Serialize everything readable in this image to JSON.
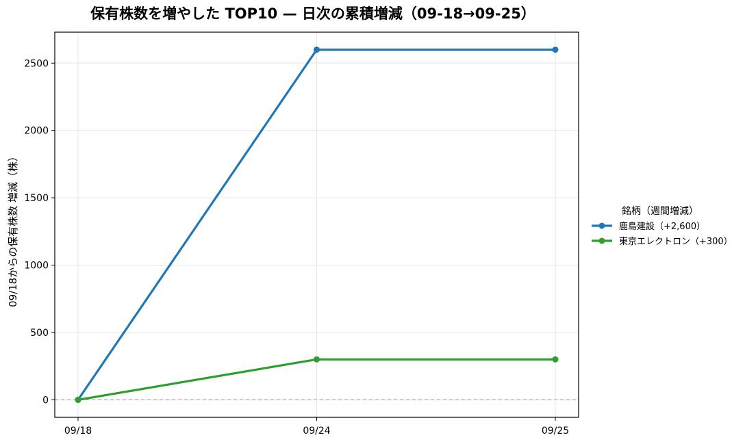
{
  "chart_data": {
    "type": "line",
    "title": "保有株数を増やした TOP10 — 日次の累積増減（09-18→09-25）",
    "ylabel": "09/18からの保有株数 増減（株）",
    "xlabel": "",
    "categories": [
      "09/18",
      "09/24",
      "09/25"
    ],
    "yticks": [
      0,
      500,
      1000,
      1500,
      2000,
      2500
    ],
    "ylim": [
      -130,
      2730
    ],
    "grid": true,
    "zero_line": true,
    "legend": {
      "title": "銘柄（週間増減）",
      "placement": "right"
    },
    "series": [
      {
        "name": "鹿島建設（+2,600）",
        "color": "#1f77b4",
        "values": [
          0,
          2600,
          2600
        ]
      },
      {
        "name": "東京エレクトロン（+300）",
        "color": "#2ca02c",
        "values": [
          0,
          300,
          300
        ]
      }
    ]
  }
}
